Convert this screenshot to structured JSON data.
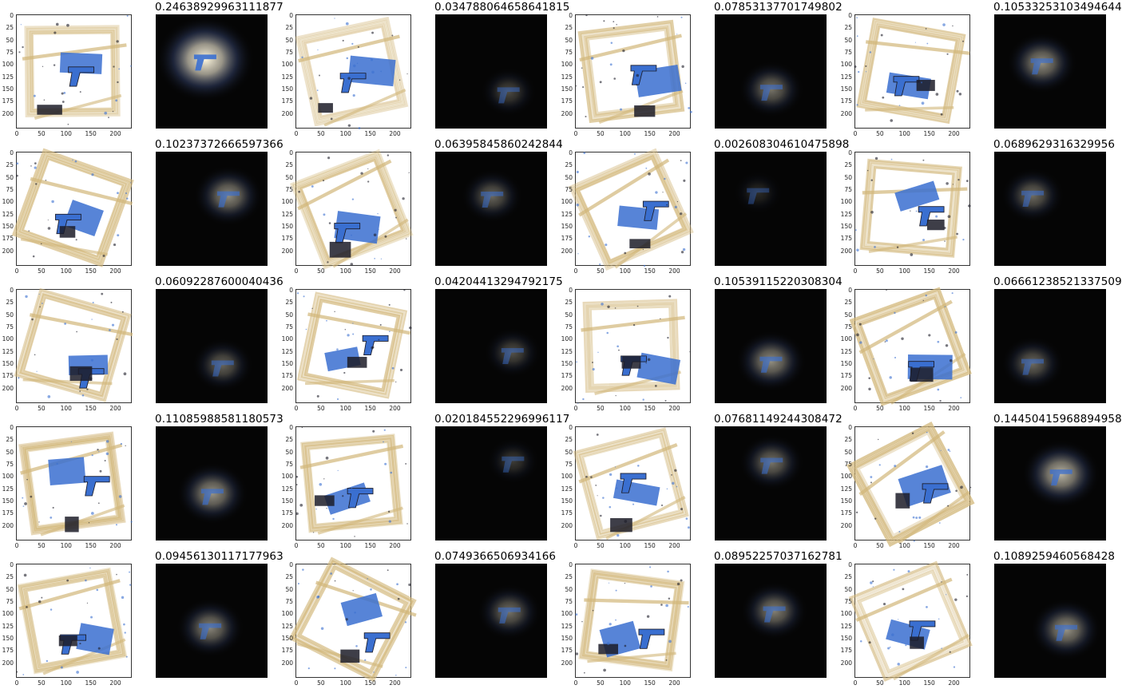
{
  "chart_data": {
    "type": "image-grid",
    "rows": 5,
    "columns": 4,
    "x_ticks": [
      "0",
      "50",
      "100",
      "150",
      "200"
    ],
    "y_ticks": [
      "0",
      "25",
      "50",
      "75",
      "100",
      "125",
      "150",
      "175",
      "200"
    ],
    "panels": [
      {
        "score": "0.24638929963111877"
      },
      {
        "score": "0.034788064658641815"
      },
      {
        "score": "0.07853137701749802"
      },
      {
        "score": "0.10533253103494644"
      },
      {
        "score": "0.10237372666597366"
      },
      {
        "score": "0.06395845860242844"
      },
      {
        "score": "0.002608304610475898"
      },
      {
        "score": "0.0689629316329956"
      },
      {
        "score": "0.06092287600040436"
      },
      {
        "score": "0.04204413294792175"
      },
      {
        "score": "0.10539115220308304"
      },
      {
        "score": "0.06661238521337509"
      },
      {
        "score": "0.11085988581180573"
      },
      {
        "score": "0.020184552296996117"
      },
      {
        "score": "0.07681149244308472"
      },
      {
        "score": "0.14450415968894958"
      },
      {
        "score": "0.09456130117177963"
      },
      {
        "score": "0.0749366506934166"
      },
      {
        "score": "0.08952257037162781"
      },
      {
        "score": "0.1089259460568428"
      }
    ]
  },
  "colors": {
    "xray_blue": "#3a6fd0",
    "xray_tan": "#d2b77a",
    "xray_dark": "#1c1c28",
    "heat_bg": "#050505",
    "heat_glow": "#fff8e0"
  }
}
